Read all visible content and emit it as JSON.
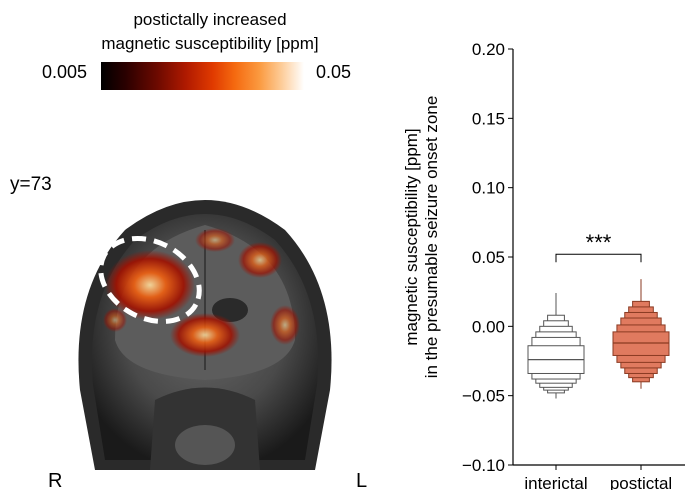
{
  "colorbar": {
    "title_line1": "postictally increased",
    "title_line2": "magnetic susceptibility [ppm]",
    "min_label": "0.005",
    "max_label": "0.05",
    "colormap": "hot"
  },
  "slice_label": "y=73",
  "orientation": {
    "right": "R",
    "left": "L"
  },
  "chart_data": {
    "type": "boxenplot",
    "ylabel_line1": "magnetic susceptibility [ppm]",
    "ylabel_line2": "in the presumable seizure onset zone",
    "ylim": [
      -0.1,
      0.2
    ],
    "yticks": [
      -0.1,
      -0.05,
      0.0,
      0.05,
      0.1,
      0.15,
      0.2
    ],
    "ytick_labels": [
      "−0.10",
      "−0.05",
      "0.00",
      "0.05",
      "0.10",
      "0.15",
      "0.20"
    ],
    "categories": [
      "interictal",
      "postictal"
    ],
    "significance": "***",
    "series": [
      {
        "category": "interictal",
        "color": "#ffffff",
        "median": -0.024,
        "boxes": [
          [
            -0.034,
            -0.014
          ],
          [
            -0.038,
            -0.008
          ],
          [
            -0.041,
            -0.004
          ],
          [
            -0.044,
            0.0
          ],
          [
            -0.046,
            0.004
          ],
          [
            -0.048,
            0.008
          ]
        ],
        "whisker": [
          -0.052,
          0.024
        ]
      },
      {
        "category": "postictal",
        "color": "#e07a5f",
        "median": -0.012,
        "boxes": [
          [
            -0.021,
            -0.004
          ],
          [
            -0.026,
            0.001
          ],
          [
            -0.03,
            0.006
          ],
          [
            -0.034,
            0.01
          ],
          [
            -0.037,
            0.014
          ],
          [
            -0.04,
            0.018
          ]
        ],
        "whisker": [
          -0.045,
          0.034
        ]
      }
    ]
  }
}
